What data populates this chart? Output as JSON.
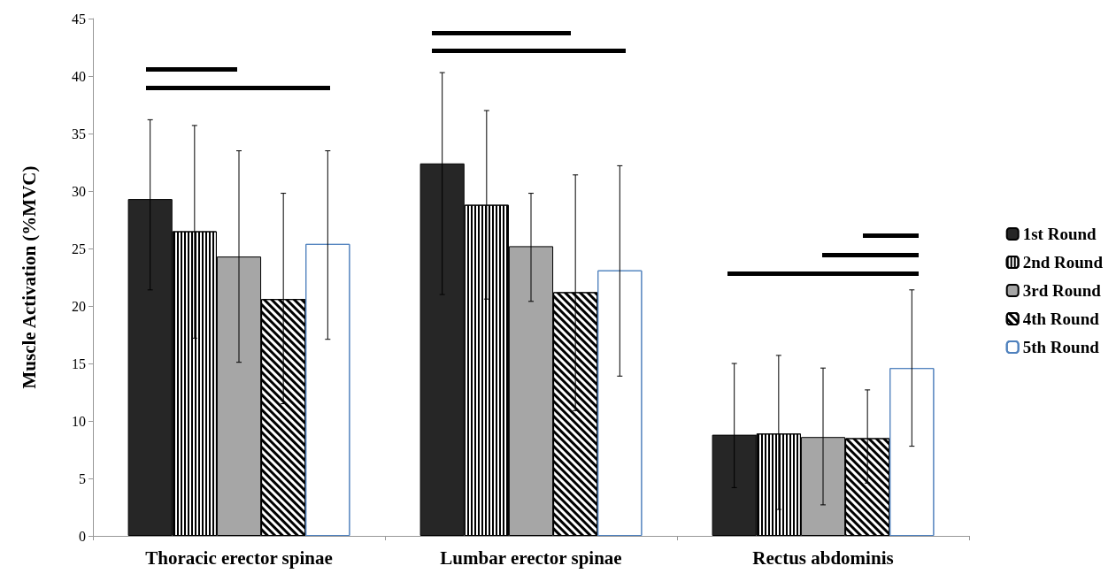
{
  "chart_data": {
    "type": "bar",
    "ylabel": "Muscle Activation (%MVC)",
    "categories": [
      "Thoracic erector spinae",
      "Lumbar erector spinae",
      "Rectus abdominis"
    ],
    "series": [
      {
        "name": "1st Round",
        "color": "#262626",
        "values": [
          29.3,
          32.4,
          8.8
        ],
        "errors": [
          [
            21.4,
            36.2
          ],
          [
            21.0,
            40.3
          ],
          [
            4.2,
            15.0
          ]
        ]
      },
      {
        "name": "2nd Round",
        "color": "#ffffff",
        "values": [
          26.5,
          28.8,
          8.9
        ],
        "errors": [
          [
            17.2,
            35.7
          ],
          [
            20.6,
            37.0
          ],
          [
            2.3,
            15.7
          ]
        ]
      },
      {
        "name": "3rd Round",
        "color": "#a6a6a6",
        "values": [
          24.3,
          25.2,
          8.6
        ],
        "errors": [
          [
            15.1,
            33.5
          ],
          [
            20.4,
            29.8
          ],
          [
            2.7,
            14.6
          ]
        ]
      },
      {
        "name": "4th Round",
        "color": "#ffffff",
        "values": [
          20.6,
          21.2,
          8.5
        ],
        "errors": [
          [
            11.5,
            29.8
          ],
          [
            10.9,
            31.4
          ],
          [
            4.6,
            12.7
          ]
        ]
      },
      {
        "name": "5th Round",
        "color": "#ffffff",
        "values": [
          25.4,
          23.1,
          14.6
        ],
        "errors": [
          [
            17.1,
            33.5
          ],
          [
            13.9,
            32.2
          ],
          [
            7.8,
            21.4
          ]
        ]
      }
    ],
    "ylim": [
      0,
      45
    ],
    "yticks": [
      0,
      5,
      10,
      15,
      20,
      25,
      30,
      35,
      40,
      45
    ],
    "grid": false,
    "legend": "right"
  }
}
